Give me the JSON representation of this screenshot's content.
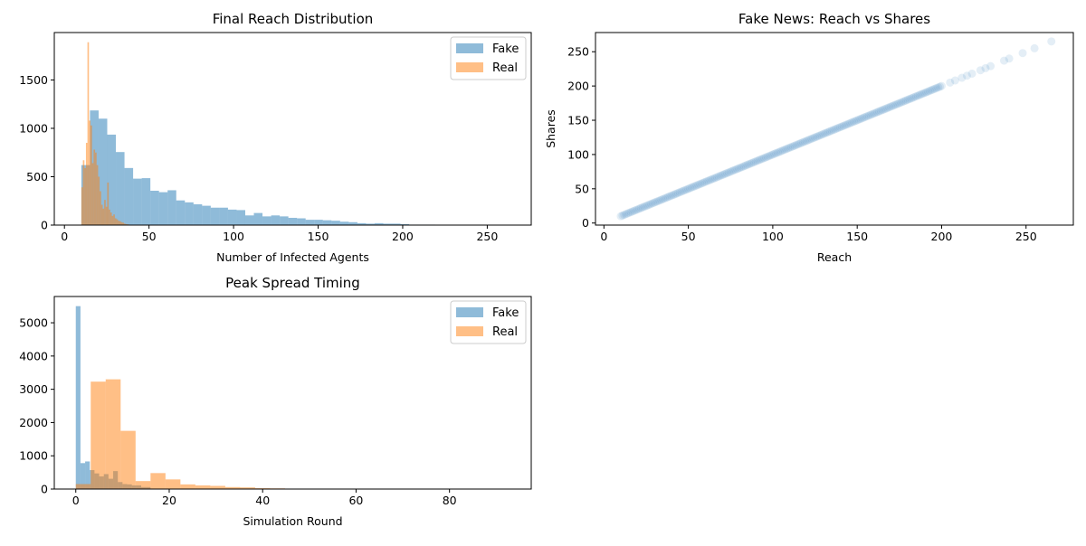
{
  "colors": {
    "fake": "#1f77b4",
    "real": "#ff7f0e",
    "legend_border": "#cccccc"
  },
  "chart_data": [
    {
      "id": "reach_hist",
      "type": "bar",
      "title": "Final Reach Distribution",
      "xlabel": "Number of Infected Agents",
      "ylabel": "",
      "xlim": [
        -6,
        276
      ],
      "ylim": [
        0,
        1990
      ],
      "xticks": [
        0,
        50,
        100,
        150,
        200,
        250
      ],
      "yticks": [
        0,
        500,
        1000,
        1500
      ],
      "legend": {
        "position": "top-right",
        "entries": [
          "Fake",
          "Real"
        ]
      },
      "series": [
        {
          "name": "Fake",
          "bin_width": 5.1,
          "x_start": 10,
          "values": [
            620,
            1185,
            1100,
            935,
            755,
            590,
            480,
            485,
            355,
            340,
            360,
            255,
            235,
            215,
            200,
            180,
            180,
            160,
            155,
            100,
            125,
            90,
            100,
            90,
            75,
            70,
            55,
            55,
            50,
            45,
            35,
            30,
            20,
            15,
            20,
            15,
            15,
            10,
            5,
            5,
            5,
            0,
            0,
            0,
            0,
            0,
            0,
            0,
            0,
            0
          ]
        },
        {
          "name": "Real",
          "bin_width": 0.9,
          "x_start": 10,
          "values": [
            390,
            670,
            590,
            850,
            1890,
            1080,
            1030,
            640,
            780,
            750,
            620,
            500,
            350,
            210,
            170,
            260,
            190,
            440,
            160,
            130,
            95,
            110,
            70,
            60,
            45,
            40,
            30,
            25,
            15,
            10,
            8,
            5
          ]
        }
      ]
    },
    {
      "id": "reach_vs_shares",
      "type": "scatter",
      "title": "Fake News: Reach vs Shares",
      "xlabel": "Reach",
      "ylabel": "Shares",
      "xlim": [
        -5,
        278
      ],
      "ylim": [
        -3,
        278
      ],
      "xticks": [
        0,
        50,
        100,
        150,
        200,
        250
      ],
      "yticks": [
        0,
        50,
        100,
        150,
        200,
        250
      ],
      "series": [
        {
          "name": "",
          "relation": "y = x",
          "x_range": [
            10,
            265
          ],
          "step": 1,
          "sparse_x": [
            205,
            208,
            212,
            215,
            218,
            223,
            226,
            229,
            237,
            240,
            248,
            255,
            265
          ]
        }
      ]
    },
    {
      "id": "peak_hist",
      "type": "bar",
      "title": "Peak Spread Timing",
      "xlabel": "Simulation Round",
      "ylabel": "",
      "xlim": [
        -4.6,
        97.5
      ],
      "ylim": [
        0,
        5790
      ],
      "xticks": [
        0,
        20,
        40,
        60,
        80
      ],
      "yticks": [
        0,
        1000,
        2000,
        3000,
        4000,
        5000
      ],
      "legend": {
        "position": "top-right",
        "entries": [
          "Fake",
          "Real"
        ]
      },
      "series": [
        {
          "name": "Fake",
          "bin_width": 1.0,
          "x_start": 0,
          "values": [
            5500,
            780,
            830,
            570,
            470,
            380,
            450,
            310,
            540,
            210,
            150,
            140,
            110,
            110,
            60,
            60
          ]
        },
        {
          "name": "Real",
          "bin_width": 3.2,
          "x_start": 0,
          "values": [
            150,
            3230,
            3300,
            1750,
            240,
            480,
            290,
            140,
            110,
            95,
            60,
            50,
            25,
            20,
            10,
            10,
            5,
            5,
            5,
            3,
            3,
            2,
            2,
            2,
            2,
            2,
            2,
            2,
            2
          ]
        }
      ]
    }
  ]
}
